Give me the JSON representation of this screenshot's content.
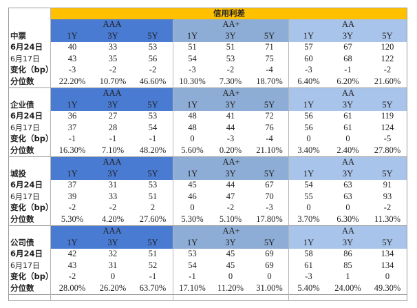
{
  "title": "信用利差",
  "grades": [
    "AAA",
    "AA+",
    "AA"
  ],
  "terms": [
    "1Y",
    "3Y",
    "5Y"
  ],
  "row_labels": {
    "current": "6月24日",
    "previous": "6月17日",
    "change": "变化（bp）",
    "percentile": "分位数"
  },
  "sections": [
    {
      "name": "中票",
      "current": [
        "40",
        "33",
        "53",
        "51",
        "51",
        "71",
        "57",
        "67",
        "120"
      ],
      "previous": [
        "43",
        "35",
        "56",
        "54",
        "53",
        "75",
        "60",
        "68",
        "122"
      ],
      "change": [
        "-3",
        "-2",
        "-2",
        "-3",
        "-2",
        "-4",
        "-3",
        "-1",
        "-2"
      ],
      "percentile": [
        "22.20%",
        "10.70%",
        "46.60%",
        "10.30%",
        "7.30%",
        "18.70%",
        "6.40%",
        "6.20%",
        "21.60%"
      ]
    },
    {
      "name": "企业债",
      "current": [
        "36",
        "27",
        "53",
        "48",
        "41",
        "72",
        "56",
        "61",
        "119"
      ],
      "previous": [
        "37",
        "28",
        "54",
        "48",
        "44",
        "76",
        "56",
        "61",
        "124"
      ],
      "change": [
        "-1",
        "-1",
        "-1",
        "0",
        "-3",
        "-4",
        "0",
        "0",
        "-5"
      ],
      "percentile": [
        "16.30%",
        "7.10%",
        "48.20%",
        "5.60%",
        "0.20%",
        "21.10%",
        "3.40%",
        "2.40%",
        "27.80%"
      ]
    },
    {
      "name": "城投",
      "current": [
        "37",
        "31",
        "53",
        "45",
        "44",
        "67",
        "54",
        "63",
        "91"
      ],
      "previous": [
        "39",
        "33",
        "51",
        "46",
        "47",
        "70",
        "55",
        "63",
        "93"
      ],
      "change": [
        "-2",
        "-2",
        "2",
        "0",
        "-2",
        "-3",
        "0",
        "0",
        "-2"
      ],
      "percentile": [
        "5.30%",
        "4.20%",
        "27.60%",
        "5.30%",
        "5.10%",
        "17.80%",
        "3.70%",
        "6.30%",
        "11.30%"
      ]
    },
    {
      "name": "公司债",
      "current": [
        "42",
        "32",
        "51",
        "53",
        "45",
        "69",
        "58",
        "86",
        "134"
      ],
      "previous": [
        "43",
        "31",
        "52",
        "54",
        "45",
        "69",
        "61",
        "85",
        "134"
      ],
      "change": [
        "-2",
        "0",
        "-1",
        "-1",
        "0",
        "0",
        "-3",
        "1",
        "0"
      ],
      "percentile": [
        "28.00%",
        "26.20%",
        "63.70%",
        "17.10%",
        "11.20%",
        "31.00%",
        "5.40%",
        "24.00%",
        "49.30%"
      ]
    }
  ]
}
